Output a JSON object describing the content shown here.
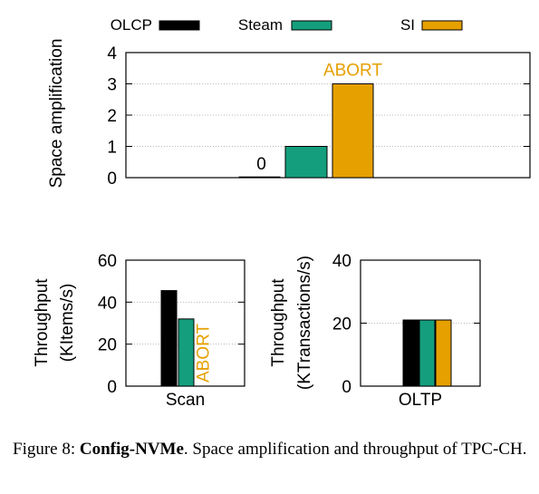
{
  "legend": [
    {
      "name": "OLCP",
      "color": "#000000"
    },
    {
      "name": "Steam",
      "color": "#149e7d"
    },
    {
      "name": "SI",
      "color": "#e6a000"
    }
  ],
  "colors": {
    "abort": "#e6a000",
    "grid": "#b8b8b8"
  },
  "chart_data": [
    {
      "type": "bar",
      "id": "space",
      "ylabel": "Space amplification",
      "ylim": [
        0,
        4
      ],
      "yticks": [
        0,
        1,
        2,
        3,
        4
      ],
      "grid": true,
      "series": [
        {
          "name": "OLCP",
          "values": [
            0
          ]
        },
        {
          "name": "Steam",
          "values": [
            1
          ]
        },
        {
          "name": "SI",
          "values": [
            3
          ]
        }
      ],
      "annotations": [
        {
          "series": "OLCP",
          "text": "0"
        },
        {
          "series": "SI",
          "text": "ABORT"
        }
      ],
      "legend": "top"
    },
    {
      "type": "bar",
      "id": "scan",
      "categories": [
        "Scan"
      ],
      "ylabel": "Throughput (KItems/s)",
      "ylabel_lines": [
        "Throughput",
        "(KItems/s)"
      ],
      "ylim": [
        0,
        60
      ],
      "yticks": [
        0,
        20,
        40,
        60
      ],
      "grid": true,
      "series": [
        {
          "name": "OLCP",
          "values": [
            45.5
          ]
        },
        {
          "name": "Steam",
          "values": [
            32
          ]
        },
        {
          "name": "SI",
          "values": [
            null
          ]
        }
      ],
      "annotations": [
        {
          "series": "SI",
          "text": "ABORT"
        }
      ]
    },
    {
      "type": "bar",
      "id": "oltp",
      "categories": [
        "OLTP"
      ],
      "ylabel": "Throughput (KTransactions/s)",
      "ylabel_lines": [
        "Throughput",
        "(KTransactions/s)"
      ],
      "ylim": [
        0,
        40
      ],
      "yticks": [
        0,
        20,
        40
      ],
      "grid": true,
      "series": [
        {
          "name": "OLCP",
          "values": [
            21
          ]
        },
        {
          "name": "Steam",
          "values": [
            21
          ]
        },
        {
          "name": "SI",
          "values": [
            21
          ]
        }
      ]
    }
  ],
  "caption": {
    "prefix": "Figure 8: ",
    "bold": "Config-NVMe",
    "rest": ". Space amplification and throughput of TPC-CH."
  }
}
